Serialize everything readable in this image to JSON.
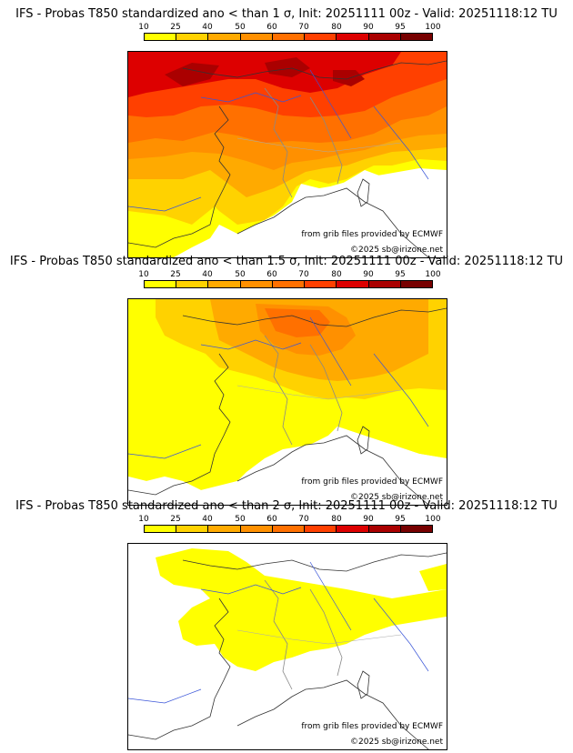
{
  "colorbar": {
    "ticks": [
      "10",
      "25",
      "40",
      "50",
      "60",
      "70",
      "80",
      "90",
      "95",
      "100"
    ],
    "colors": [
      "#ffff00",
      "#ffd200",
      "#ffaa00",
      "#ff9000",
      "#ff7000",
      "#ff4000",
      "#dd0000",
      "#aa0000",
      "#770000"
    ]
  },
  "panels": [
    {
      "title": "IFS - Probas T850  standardized ano < than 1 σ, Init: 20251111 00z - Valid: 20251118:12 TU"
    },
    {
      "title": "IFS - Probas T850  standardized ano < than 1.5 σ, Init: 20251111 00z - Valid: 20251118:12 TU"
    },
    {
      "title": "IFS - Probas T850  standardized ano < than 2 σ, Init: 20251111 00z - Valid: 20251118:12 TU"
    }
  ],
  "credits": {
    "source": "from grib files provided by ECMWF",
    "copyright": "©2025 sb@irizone.net"
  }
}
